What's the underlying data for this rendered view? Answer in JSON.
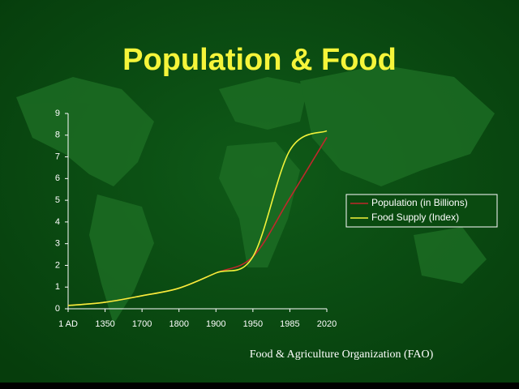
{
  "chart_data": {
    "type": "line",
    "title": "Population & Food",
    "categories": [
      "1 AD",
      "1350",
      "1700",
      "1800",
      "1900",
      "1950",
      "1985",
      "2020"
    ],
    "series": [
      {
        "name": "Population (in Billions)",
        "color": "#c0282b",
        "values": [
          0.15,
          0.3,
          0.6,
          0.95,
          1.65,
          2.4,
          5.1,
          7.9
        ]
      },
      {
        "name": "Food Supply (Index)",
        "color": "#f2f23a",
        "values": [
          0.15,
          0.3,
          0.6,
          0.95,
          1.65,
          2.4,
          7.3,
          8.2
        ]
      }
    ],
    "ylim": [
      0,
      9
    ],
    "yticks": [
      0,
      1,
      2,
      3,
      4,
      5,
      6,
      7,
      8,
      9
    ],
    "legend": "right",
    "source": "Food & Agriculture Organization (FAO)"
  }
}
